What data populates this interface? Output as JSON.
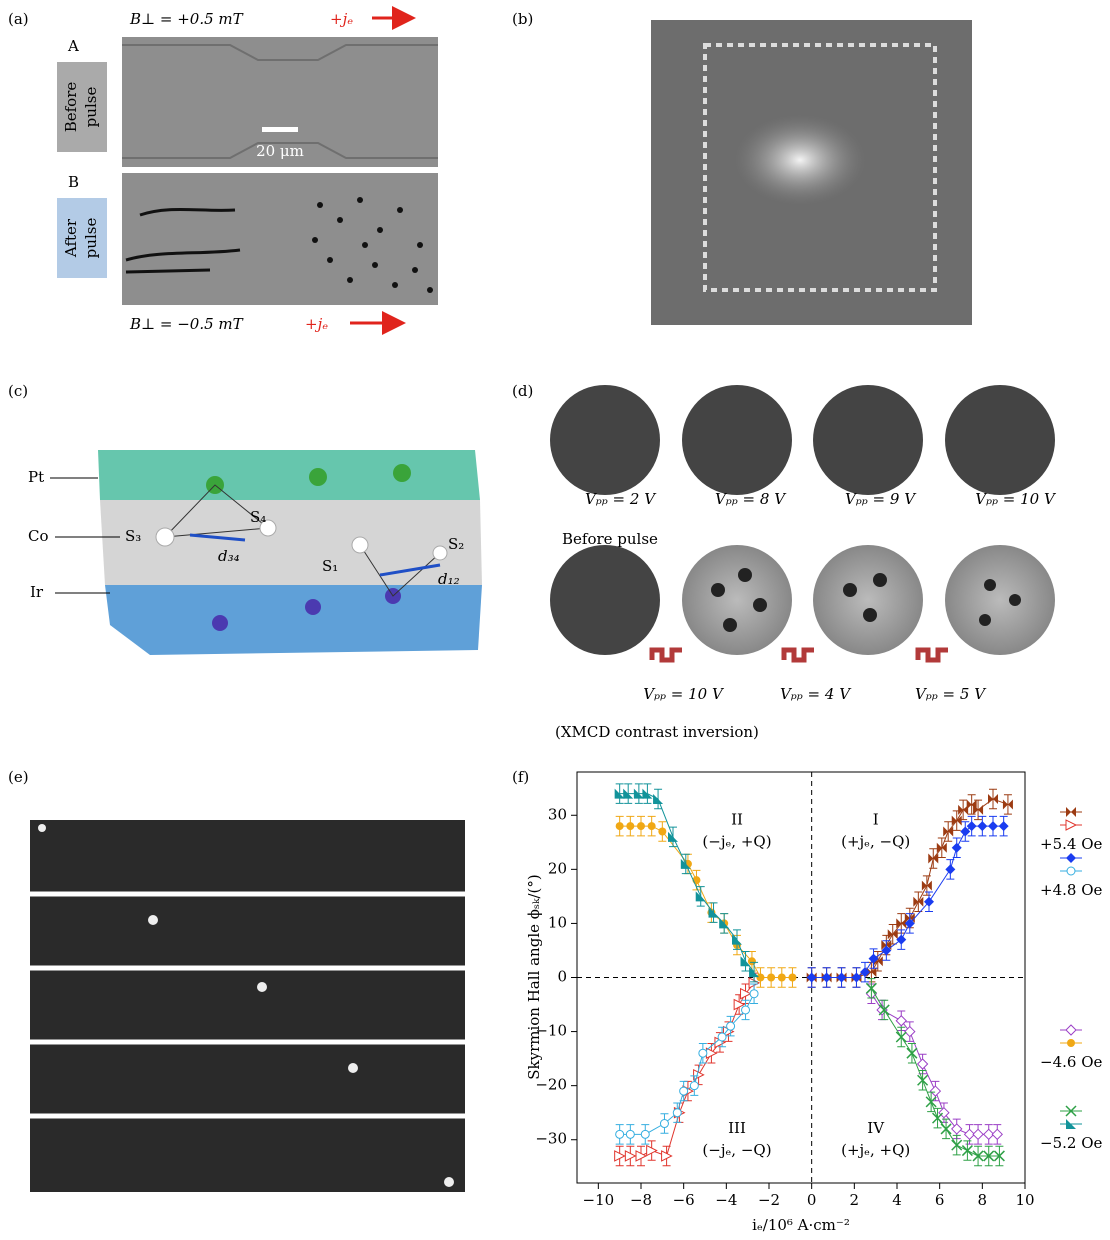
{
  "panels": {
    "a": {
      "label": "(a)",
      "top_field": "B⊥ = +0.5 mT",
      "top_current": "+jₑ",
      "row_a": "A",
      "before": [
        "Before",
        "pulse"
      ],
      "scale": "20 μm",
      "row_b": "B",
      "after": [
        "After",
        "pulse"
      ],
      "bottom_field": "B⊥ = −0.5 mT",
      "bottom_current": "+jₑ"
    },
    "b": {
      "label": "(b)"
    },
    "c": {
      "label": "(c)",
      "layers": [
        "Pt",
        "Co",
        "Ir"
      ],
      "spins": [
        "S₃",
        "S₄",
        "S₁",
        "S₂"
      ],
      "distances": [
        "d₃₄",
        "d₁₂"
      ]
    },
    "d": {
      "label": "(d)",
      "top_row": [
        "Vₚₚ = 2 V",
        "Vₚₚ = 8 V",
        "Vₚₚ = 9 V",
        "Vₚₚ = 10 V"
      ],
      "before": "Before pulse",
      "bottom_row": [
        "Vₚₚ = 10 V",
        "Vₚₚ = 4 V",
        "Vₚₚ = 5 V"
      ],
      "note": "(XMCD contrast inversion)"
    },
    "e": {
      "label": "(e)"
    },
    "f": {
      "label": "(f)"
    }
  },
  "chart_data": {
    "type": "line",
    "xlabel": "iₑ/10⁶ A·cm⁻²",
    "ylabel": "Skyrmion Hall angle ϕₛₖ/(°)",
    "xlim": [
      -11,
      10
    ],
    "ylim": [
      -38,
      38
    ],
    "xticks": [
      {
        "value": -10,
        "label": "−10"
      },
      {
        "value": -8,
        "label": "−8"
      },
      {
        "value": -6,
        "label": "−6"
      },
      {
        "value": -4,
        "label": "−4"
      },
      {
        "value": -2,
        "label": "−2"
      },
      0,
      2,
      4,
      6,
      8,
      10
    ],
    "yticks": [
      {
        "value": -30,
        "label": "−30"
      },
      {
        "value": -20,
        "label": "−20"
      },
      {
        "value": -10,
        "label": "−10"
      },
      0,
      10,
      20,
      30
    ],
    "annotations": [
      {
        "text": [
          "II",
          "(−jₑ, +Q)"
        ],
        "x": -3.5,
        "y": 29
      },
      {
        "text": [
          "I",
          "(+jₑ, −Q)"
        ],
        "x": 3,
        "y": 29
      },
      {
        "text": [
          "III",
          "(−jₑ, −Q)"
        ],
        "x": -3.5,
        "y": -28
      },
      {
        "text": [
          "IV",
          "(+jₑ, +Q)"
        ],
        "x": 3,
        "y": -28
      }
    ],
    "series_groups": [
      {
        "name": "+5.4 Oe",
        "series": [
          {
            "color": "#9c3b12",
            "marker": "bowtie",
            "yerr": 1.8,
            "x": [
              0,
              0.7,
              1.4,
              2.1,
              2.8,
              3.1,
              3.5,
              3.8,
              4.2,
              4.6,
              5,
              5.4,
              5.7,
              6.1,
              6.4,
              6.8,
              7.1,
              7.5,
              7.8,
              8.5,
              9.2
            ],
            "values": [
              0,
              0,
              0,
              0,
              1,
              3,
              6,
              8,
              10,
              11,
              14,
              17,
              22,
              24,
              27,
              29,
              31,
              32,
              31,
              33,
              32
            ]
          },
          {
            "color": "#e0342c",
            "marker": "triangle-open",
            "yerr": 1.8,
            "x": [
              -9,
              -8.5,
              -8,
              -7.5,
              -6.8,
              -6.2,
              -5.8,
              -5.3,
              -4.7,
              -4.3,
              -3.9,
              -3.4,
              -3.1,
              -2.7
            ],
            "values": [
              -33,
              -33,
              -33,
              -32,
              -33,
              -25,
              -21,
              -18,
              -14,
              -12,
              -10,
              -5,
              -3,
              -1
            ]
          }
        ]
      },
      {
        "name": "+4.8 Oe",
        "series": [
          {
            "color": "#1a3cf0",
            "marker": "diamond",
            "yerr": 1.8,
            "x": [
              0,
              0.7,
              1.4,
              2.1,
              2.5,
              2.9,
              3.5,
              4.2,
              4.6,
              5.5,
              6.5,
              6.8,
              7.2,
              7.5,
              8,
              8.5,
              9
            ],
            "values": [
              0,
              0,
              0,
              0,
              1,
              3.5,
              5,
              7,
              10,
              14,
              20,
              24,
              27,
              28,
              28,
              28,
              28
            ]
          },
          {
            "color": "#35aee0",
            "marker": "circle-open",
            "yerr": 1.8,
            "x": [
              -9,
              -8.5,
              -7.8,
              -6.9,
              -6.3,
              -6,
              -5.5,
              -5.1,
              -4.2,
              -3.8,
              -3.1,
              -2.7
            ],
            "values": [
              -29,
              -29,
              -29,
              -27,
              -25,
              -21,
              -20,
              -14,
              -11,
              -9,
              -6,
              -3
            ]
          }
        ]
      },
      {
        "name": "−4.6 Oe",
        "series": [
          {
            "color": "#9b3fc6",
            "marker": "diamond-open",
            "yerr": 1.8,
            "x": [
              2.8,
              3.3,
              4.2,
              4.6,
              5.2,
              5.8,
              6.2,
              6.8,
              7.4,
              7.8,
              8.3,
              8.7
            ],
            "values": [
              -3,
              -6,
              -8,
              -10,
              -16,
              -21,
              -25,
              -28,
              -29,
              -29,
              -29,
              -29
            ]
          },
          {
            "color": "#f0a815",
            "marker": "circle",
            "yerr": 1.8,
            "x": [
              -9,
              -8.5,
              -8,
              -7.5,
              -7,
              -5.8,
              -5.4,
              -4.7,
              -4.1,
              -3.5,
              -2.8,
              -2.4,
              -1.9,
              -1.4,
              -0.9
            ],
            "values": [
              28,
              28,
              28,
              28,
              27,
              21,
              18,
              12,
              10,
              6,
              3,
              0,
              0,
              0,
              0
            ]
          }
        ]
      },
      {
        "name": "−5.2 Oe",
        "series": [
          {
            "color": "#2ea046",
            "marker": "x",
            "yerr": 1.8,
            "x": [
              2.8,
              3.4,
              4.2,
              4.7,
              5.2,
              5.6,
              5.9,
              6.3,
              6.8,
              7.3,
              7.8,
              8.3,
              8.8
            ],
            "values": [
              -2,
              -6,
              -11,
              -14,
              -19,
              -23,
              -26,
              -28,
              -31,
              -32,
              -33,
              -33,
              -33
            ]
          },
          {
            "color": "#12939a",
            "marker": "triangle",
            "yerr": 1.8,
            "x": [
              -9,
              -8.6,
              -8.1,
              -7.7,
              -7.2,
              -6.5,
              -5.9,
              -5.2,
              -4.6,
              -4.1,
              -3.5,
              -3.1,
              -2.7
            ],
            "values": [
              34,
              34,
              34,
              34,
              33,
              26,
              21,
              15,
              12,
              10,
              7,
              3,
              1
            ]
          }
        ]
      }
    ]
  }
}
